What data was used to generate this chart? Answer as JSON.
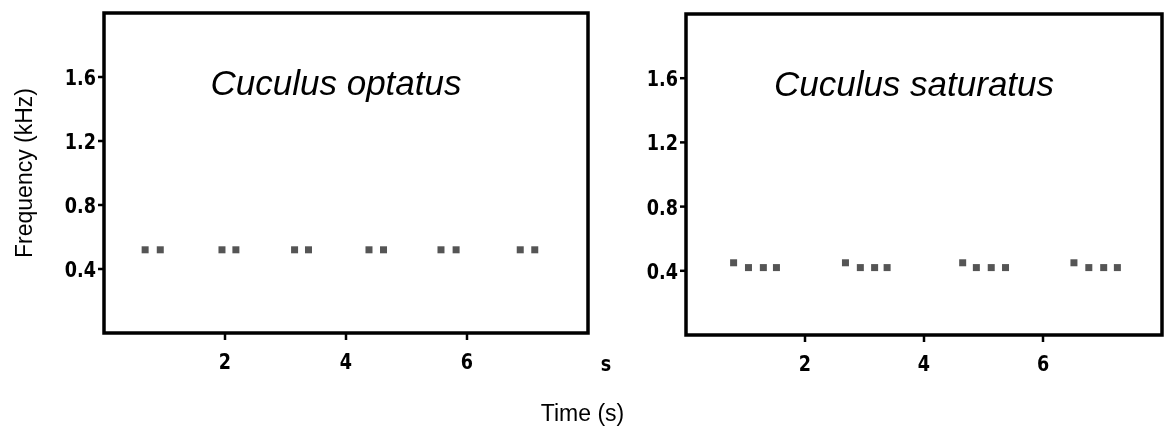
{
  "chart_data": [
    {
      "type": "scatter",
      "title": "Cuculus optatus",
      "ylabel": "Frequency (kHz)",
      "annotations": [
        "s"
      ],
      "xlim": [
        0,
        8
      ],
      "ylim": [
        0,
        2
      ],
      "xticks": [
        2,
        4,
        6
      ],
      "yticks": [
        0.4,
        0.8,
        1.2,
        1.6
      ],
      "marker": "square",
      "series": [
        {
          "color": "#555555",
          "x": [
            0.68,
            0.93,
            1.95,
            2.18,
            3.15,
            3.38,
            4.38,
            4.62,
            5.57,
            5.82,
            6.88,
            7.12
          ],
          "values": [
            0.52,
            0.52,
            0.52,
            0.52,
            0.52,
            0.52,
            0.52,
            0.52,
            0.52,
            0.52,
            0.52,
            0.52
          ]
        }
      ]
    },
    {
      "type": "scatter",
      "title": "Cuculus saturatus",
      "xlabel": "Time (s)",
      "xlim": [
        0,
        8
      ],
      "ylim": [
        0,
        2
      ],
      "xticks": [
        2,
        4,
        6
      ],
      "yticks": [
        0.4,
        0.8,
        1.2,
        1.6
      ],
      "marker": "square",
      "series": [
        {
          "color": "#555555",
          "x": [
            0.8,
            1.05,
            1.3,
            1.52,
            2.68,
            2.93,
            3.17,
            3.38,
            4.65,
            4.88,
            5.13,
            5.37,
            6.52,
            6.77,
            7.02,
            7.25
          ],
          "values": [
            0.45,
            0.42,
            0.42,
            0.42,
            0.45,
            0.42,
            0.42,
            0.42,
            0.45,
            0.42,
            0.42,
            0.42,
            0.45,
            0.42,
            0.42,
            0.42
          ]
        }
      ]
    }
  ]
}
